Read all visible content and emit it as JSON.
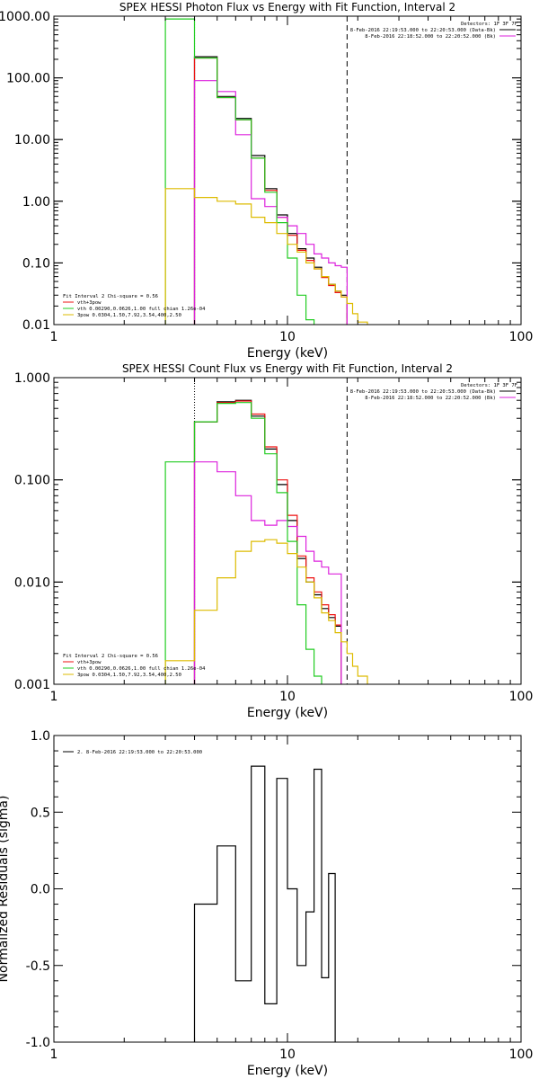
{
  "colors": {
    "total": "#000000",
    "data": "#e0157a",
    "vth": "#22cc22",
    "pow": "#ddbb00",
    "red": "#ee1111",
    "magenta": "#dd22dd"
  },
  "chart_data": [
    {
      "type": "line",
      "title": "SPEX HESSI Photon Flux vs Energy with Fit Function, Interval 2",
      "xlabel": "Energy (keV)",
      "ylabel": "",
      "xscale": "log",
      "yscale": "log",
      "xlim": [
        1,
        100
      ],
      "ylim": [
        0.01,
        1000
      ],
      "x_ticks": [
        "1",
        "10",
        "100"
      ],
      "y_ticks": [
        "0.01",
        "0.10",
        "1.00",
        "10.00",
        "100.00",
        "1000.00"
      ],
      "header_right": [
        "Detectors: 1F 3F 7F",
        "8-Feb-2016 22:19:53.000 to 22:20:53.000 (Data-Bk)",
        "8-Feb-2016 22:18:52.000 to 22:20:52.000 (Bk)"
      ],
      "legend": [
        "Fit Interval 2   Chi-square = 0.56",
        "vth+3pow",
        "vth 0.00290,0.0626,1.00  full chian 1.26e-04",
        "3pow 0.0304,1.50,7.92,3.54,400,2.50"
      ],
      "vlines": [
        4.0,
        18.0
      ],
      "bin_edges": [
        3.0,
        4.0,
        5.0,
        6.0,
        7.0,
        8.0,
        9.0,
        10.0,
        11.0,
        12.0,
        13.0,
        14.0,
        15.0,
        16.0,
        17.0,
        18.0,
        19.0,
        20.0,
        22.0,
        24.0
      ],
      "series": [
        {
          "name": "vth+3pow",
          "color_key": "total",
          "values": [
            null,
            220,
            50,
            22,
            5.5,
            1.6,
            0.6,
            0.3,
            0.17,
            0.12,
            0.085,
            0.06,
            0.045,
            0.035,
            0.03,
            null,
            null,
            null,
            null
          ]
        },
        {
          "name": "",
          "color_key": "red",
          "values": [
            null,
            210,
            48,
            21,
            5.0,
            1.5,
            0.55,
            0.28,
            0.16,
            0.11,
            0.08,
            0.058,
            0.043,
            0.033,
            0.028,
            null,
            null,
            null,
            null
          ]
        },
        {
          "name": "",
          "color_key": "magenta",
          "values": [
            null,
            90,
            60,
            12,
            1.1,
            0.82,
            0.55,
            0.4,
            0.3,
            0.2,
            0.14,
            0.12,
            0.1,
            0.09,
            0.085,
            null,
            null,
            null,
            null
          ]
        },
        {
          "name": "vth",
          "color_key": "vth",
          "values": [
            900,
            210,
            48,
            21,
            5.0,
            1.4,
            0.45,
            0.12,
            0.03,
            0.012,
            null,
            null,
            null,
            null,
            null,
            null,
            null,
            null,
            null
          ]
        },
        {
          "name": "3pow",
          "color_key": "pow",
          "values": [
            1.6,
            1.15,
            1.0,
            0.9,
            0.55,
            0.45,
            0.3,
            0.2,
            0.15,
            0.1,
            0.08,
            0.06,
            0.045,
            0.035,
            0.028,
            0.022,
            0.015,
            0.011,
            null
          ]
        }
      ]
    },
    {
      "type": "line",
      "title": "SPEX HESSI Count Flux vs Energy with Fit Function, Interval 2",
      "xlabel": "Energy (keV)",
      "ylabel": "",
      "xscale": "log",
      "yscale": "log",
      "xlim": [
        1,
        100
      ],
      "ylim": [
        0.001,
        1.0
      ],
      "x_ticks": [
        "1",
        "10",
        "100"
      ],
      "y_ticks": [
        "0.001",
        "0.010",
        "0.100",
        "1.000"
      ],
      "header_right": [
        "Detectors: 1F 3F 7F",
        "8-Feb-2016 22:19:53.000 to 22:20:53.000 (Data-Bk)",
        "8-Feb-2016 22:18:52.000 to 22:20:52.000 (Bk)"
      ],
      "legend": [
        "Fit Interval 2   Chi-square = 0.56",
        "vth+3pow",
        "vth 0.00290,0.0626,1.00  full chian 1.26e-04",
        "3pow 0.0304,1.50,7.92,3.54,400,2.50"
      ],
      "vlines": [
        4.0,
        18.0
      ],
      "bin_edges": [
        3.0,
        4.0,
        5.0,
        6.0,
        7.0,
        8.0,
        9.0,
        10.0,
        11.0,
        12.0,
        13.0,
        14.0,
        15.0,
        16.0,
        17.0,
        18.0,
        19.0,
        20.0,
        22.0,
        24.0
      ],
      "series": [
        {
          "name": "vth+3pow",
          "color_key": "total",
          "values": [
            null,
            0.37,
            0.58,
            0.6,
            0.42,
            0.2,
            0.09,
            0.04,
            0.017,
            0.01,
            0.0075,
            0.0055,
            0.0045,
            0.0037,
            null,
            null,
            null,
            null,
            null
          ]
        },
        {
          "name": "",
          "color_key": "red",
          "values": [
            null,
            0.37,
            0.57,
            0.59,
            0.44,
            0.21,
            0.1,
            0.045,
            0.018,
            0.011,
            0.008,
            0.006,
            0.0048,
            0.0038,
            null,
            null,
            null,
            null,
            null
          ]
        },
        {
          "name": "",
          "color_key": "magenta",
          "values": [
            null,
            0.15,
            0.12,
            0.07,
            0.04,
            0.036,
            0.04,
            0.035,
            0.028,
            0.02,
            0.016,
            0.014,
            0.012,
            0.012,
            null,
            null,
            null,
            null,
            null
          ]
        },
        {
          "name": "vth",
          "color_key": "vth",
          "values": [
            0.15,
            0.37,
            0.56,
            0.57,
            0.4,
            0.18,
            0.075,
            0.025,
            0.006,
            0.0022,
            0.0012,
            null,
            null,
            null,
            null,
            null,
            null,
            null,
            null
          ]
        },
        {
          "name": "3pow",
          "color_key": "pow",
          "values": [
            0.0017,
            0.0053,
            0.011,
            0.02,
            0.025,
            0.026,
            0.024,
            0.019,
            0.014,
            0.01,
            0.007,
            0.005,
            0.0042,
            0.0032,
            0.0026,
            0.002,
            0.0015,
            0.0012,
            null
          ]
        }
      ]
    },
    {
      "type": "line",
      "title": "",
      "xlabel": "Energy (keV)",
      "ylabel": "Normalized Residuals (sigma)",
      "xscale": "log",
      "yscale": "linear",
      "xlim": [
        1,
        100
      ],
      "ylim": [
        -1.0,
        1.0
      ],
      "x_ticks": [
        "1",
        "10",
        "100"
      ],
      "y_ticks": [
        "-1.0",
        "-0.5",
        "0.0",
        "0.5",
        "1.0"
      ],
      "legend": [
        "2.  8-Feb-2016 22:19:53.000 to 22:20:53.000"
      ],
      "bin_edges": [
        4.0,
        5.0,
        6.0,
        7.0,
        8.0,
        9.0,
        10.0,
        11.0,
        12.0,
        13.0,
        14.0,
        15.0,
        16.0,
        17.0,
        18.0
      ],
      "series": [
        {
          "name": "",
          "color_key": "total",
          "values": [
            -0.1,
            0.28,
            -0.6,
            0.8,
            -0.75,
            0.72,
            0.0,
            -0.5,
            -0.15,
            0.78,
            -0.58,
            0.1,
            null,
            null
          ]
        }
      ]
    }
  ]
}
